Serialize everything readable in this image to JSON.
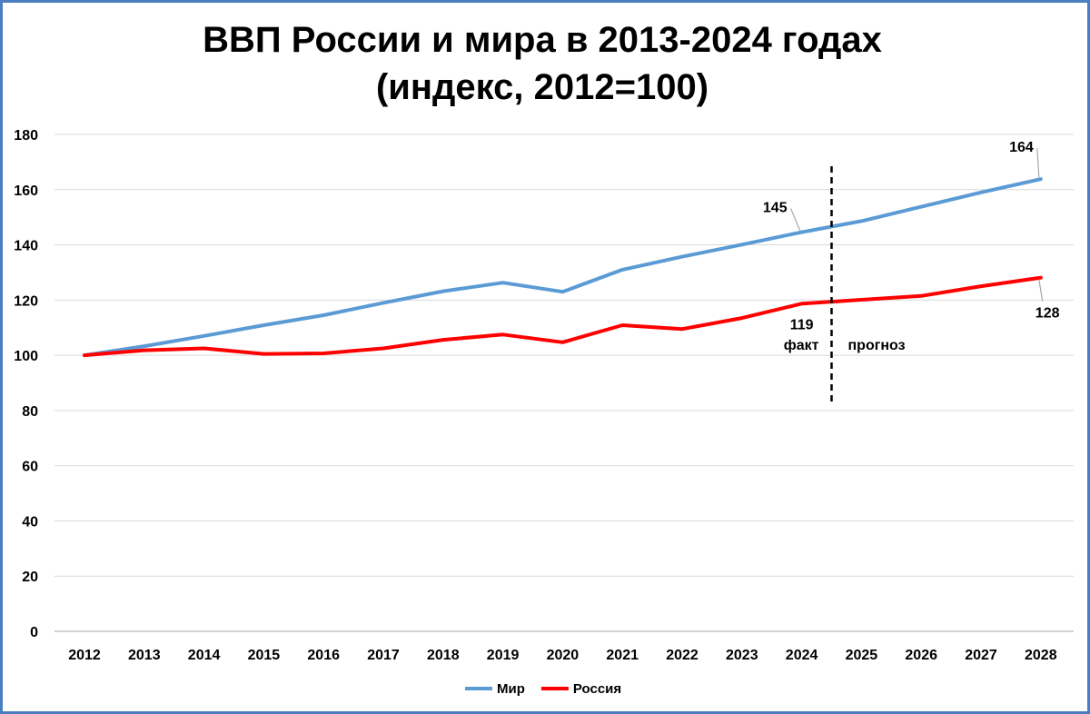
{
  "chart_data": {
    "type": "line",
    "title_line1": "ВВП России и мира в 2013-2024 годах",
    "title_line2": "(индекс, 2012=100)",
    "xlabel": "",
    "ylabel": "",
    "ylim": [
      0,
      180
    ],
    "yticks": [
      0,
      20,
      40,
      60,
      80,
      100,
      120,
      140,
      160,
      180
    ],
    "grid": true,
    "legend_position": "bottom",
    "x": [
      "2012",
      "2013",
      "2014",
      "2015",
      "2016",
      "2017",
      "2018",
      "2019",
      "2020",
      "2021",
      "2022",
      "2023",
      "2024",
      "2025",
      "2026",
      "2027",
      "2028"
    ],
    "series": [
      {
        "name": "Мир",
        "color": "#5b9bd5",
        "values": [
          100,
          103.3,
          107,
          110.9,
          114.5,
          119,
          123.2,
          126.3,
          123,
          131,
          135.7,
          140.1,
          144.6,
          148.6,
          153.8,
          159,
          163.8
        ]
      },
      {
        "name": "Россия",
        "color": "#ff0000",
        "values": [
          100,
          101.8,
          102.5,
          100.5,
          100.7,
          102.5,
          105.6,
          107.5,
          104.7,
          110.9,
          109.5,
          113.5,
          118.7,
          120.1,
          121.5,
          125,
          128.1
        ]
      }
    ],
    "annotations": [
      {
        "text": "145",
        "series": "Мир",
        "x": "2024"
      },
      {
        "text": "164",
        "series": "Мир",
        "x": "2028"
      },
      {
        "text": "119",
        "series": "Россия",
        "x": "2024"
      },
      {
        "text": "128",
        "series": "Россия",
        "x": "2028"
      }
    ],
    "divider": {
      "between": [
        "2024",
        "2025"
      ],
      "left_label": "факт",
      "right_label": "прогноз"
    }
  }
}
